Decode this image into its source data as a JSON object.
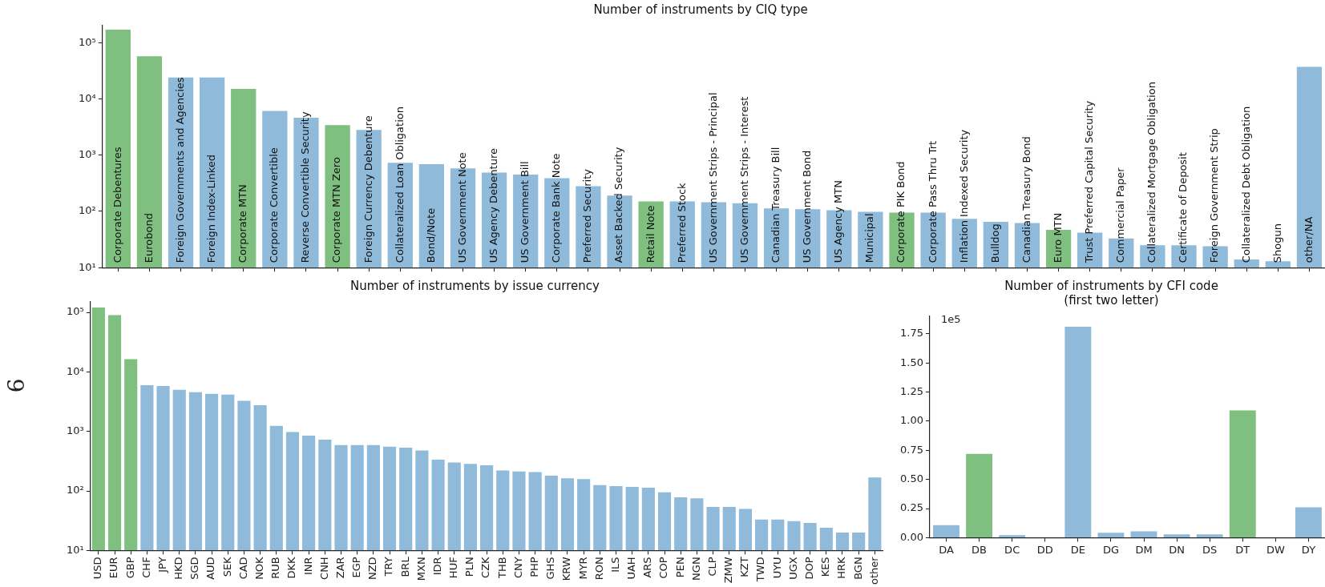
{
  "chart_data": [
    {
      "type": "bar",
      "title": "Number of instruments by CIQ type",
      "categories": [
        "Corporate Debentures",
        "Eurobond",
        "Foreign Governments and Agencies",
        "Foreign Index-Linked",
        "Corporate MTN",
        "Corporate Convertible",
        "Reverse Convertible Security",
        "Corporate MTN Zero",
        "Foreign Currency Debenture",
        "Collateralized Loan Obligation",
        "Bond/Note",
        "US Government Note",
        "US Agency Debenture",
        "US Government Bill",
        "Corporate Bank Note",
        "Preferred Security",
        "Asset Backed Security",
        "Retail Note",
        "Preferred Stock",
        "US Government Strips - Principal",
        "US Government Strips - Interest",
        "Canadian Treasury Bill",
        "US Government Bond",
        "US Agency MTN",
        "Municipal",
        "Corporate PIK Bond",
        "Corporate Pass Thru Trt",
        "Inflation Indexed Security",
        "Bulldog",
        "Canadian Treasury Bond",
        "Euro MTN",
        "Trust Preferred Capital Security",
        "Commercial Paper",
        "Collateralized Mortgage Obligation",
        "Certificate of Deposit",
        "Foreign Government Strip",
        "Collateralized Debt Obligation",
        "Shogun",
        "other/NA"
      ],
      "values": [
        170000,
        57000,
        24000,
        24000,
        15000,
        6100,
        4600,
        3400,
        2800,
        730,
        690,
        580,
        490,
        450,
        390,
        280,
        190,
        150,
        150,
        145,
        140,
        113,
        109,
        105,
        98,
        95,
        95,
        74,
        65,
        62,
        47,
        42,
        33,
        25,
        25,
        24,
        14,
        13,
        37000
      ],
      "colors": [
        "#7fbf7f",
        "#7fbf7f",
        "#8fbad9",
        "#8fbad9",
        "#7fbf7f",
        "#8fbad9",
        "#8fbad9",
        "#7fbf7f",
        "#8fbad9",
        "#8fbad9",
        "#8fbad9",
        "#8fbad9",
        "#8fbad9",
        "#8fbad9",
        "#8fbad9",
        "#8fbad9",
        "#8fbad9",
        "#7fbf7f",
        "#8fbad9",
        "#8fbad9",
        "#8fbad9",
        "#8fbad9",
        "#8fbad9",
        "#8fbad9",
        "#8fbad9",
        "#7fbf7f",
        "#8fbad9",
        "#8fbad9",
        "#8fbad9",
        "#8fbad9",
        "#7fbf7f",
        "#8fbad9",
        "#8fbad9",
        "#8fbad9",
        "#8fbad9",
        "#8fbad9",
        "#8fbad9",
        "#8fbad9",
        "#8fbad9"
      ],
      "log": true,
      "ylim": [
        10,
        200000
      ],
      "yticks": [
        {
          "value": 10,
          "label": "10¹"
        },
        {
          "value": 100,
          "label": "10²"
        },
        {
          "value": 1000,
          "label": "10³"
        },
        {
          "value": 10000,
          "label": "10⁴"
        },
        {
          "value": 100000,
          "label": "10⁵"
        }
      ],
      "tick_labels": "y",
      "grid": false,
      "legend": false
    },
    {
      "type": "bar",
      "title": "Number of instruments by issue currency",
      "categories": [
        "USD",
        "EUR",
        "GBP",
        "CHF",
        "JPY",
        "HKD",
        "SGD",
        "AUD",
        "SEK",
        "CAD",
        "NOK",
        "RUB",
        "DKK",
        "INR",
        "CNH",
        "ZAR",
        "EGP",
        "NZD",
        "TRY",
        "BRL",
        "MXN",
        "IDR",
        "HUF",
        "PLN",
        "CZK",
        "THB",
        "CNY",
        "PHP",
        "GHS",
        "KRW",
        "MYR",
        "RON",
        "ILS",
        "UAH",
        "ARS",
        "COP",
        "PEN",
        "NGN",
        "CLP",
        "ZMW",
        "KZT",
        "TWD",
        "UYU",
        "UGX",
        "DOP",
        "KES",
        "HRK",
        "BGN",
        "other"
      ],
      "values": [
        121000,
        90000,
        16400,
        6000,
        5800,
        5000,
        4550,
        4300,
        4150,
        3270,
        2760,
        1240,
        980,
        850,
        730,
        590,
        590,
        590,
        555,
        535,
        480,
        335,
        300,
        285,
        270,
        220,
        213,
        207,
        181,
        163,
        158,
        125,
        121,
        117,
        113,
        95,
        78,
        75,
        54,
        54,
        50,
        33,
        33,
        31,
        29,
        24,
        20,
        20,
        168
      ],
      "colors": [
        "#7fbf7f",
        "#7fbf7f",
        "#7fbf7f",
        "#8fbad9",
        "#8fbad9",
        "#8fbad9",
        "#8fbad9",
        "#8fbad9",
        "#8fbad9",
        "#8fbad9",
        "#8fbad9",
        "#8fbad9",
        "#8fbad9",
        "#8fbad9",
        "#8fbad9",
        "#8fbad9",
        "#8fbad9",
        "#8fbad9",
        "#8fbad9",
        "#8fbad9",
        "#8fbad9",
        "#8fbad9",
        "#8fbad9",
        "#8fbad9",
        "#8fbad9",
        "#8fbad9",
        "#8fbad9",
        "#8fbad9",
        "#8fbad9",
        "#8fbad9",
        "#8fbad9",
        "#8fbad9",
        "#8fbad9",
        "#8fbad9",
        "#8fbad9",
        "#8fbad9",
        "#8fbad9",
        "#8fbad9",
        "#8fbad9",
        "#8fbad9",
        "#8fbad9",
        "#8fbad9",
        "#8fbad9",
        "#8fbad9",
        "#8fbad9",
        "#8fbad9",
        "#8fbad9",
        "#8fbad9",
        "#8fbad9"
      ],
      "log": true,
      "ylim": [
        10,
        150000
      ],
      "yticks": [
        {
          "value": 10,
          "label": "10¹"
        },
        {
          "value": 100,
          "label": "10²"
        },
        {
          "value": 1000,
          "label": "10³"
        },
        {
          "value": 10000,
          "label": "10⁴"
        },
        {
          "value": 100000,
          "label": "10⁵"
        }
      ],
      "grid": false,
      "legend": false,
      "annotations": [
        "9"
      ]
    },
    {
      "type": "bar",
      "title": "Number of instruments by CFI code\n(first two letter)",
      "categories": [
        "DA",
        "DB",
        "DC",
        "DD",
        "DE",
        "DG",
        "DM",
        "DN",
        "DS",
        "DT",
        "DW",
        "DY"
      ],
      "values": [
        0.108,
        0.72,
        0.022,
        0,
        1.81,
        0.042,
        0.055,
        0.029,
        0.029,
        1.093,
        0,
        0.26
      ],
      "colors": [
        "#8fbad9",
        "#7fbf7f",
        "#8fbad9",
        "#8fbad9",
        "#8fbad9",
        "#8fbad9",
        "#8fbad9",
        "#8fbad9",
        "#8fbad9",
        "#7fbf7f",
        "#8fbad9",
        "#8fbad9"
      ],
      "ylim": [
        0,
        1.9
      ],
      "yticks": [
        {
          "value": 0,
          "label": "0.00"
        },
        {
          "value": 0.25,
          "label": "0.25"
        },
        {
          "value": 0.5,
          "label": "0.50"
        },
        {
          "value": 0.75,
          "label": "0.75"
        },
        {
          "value": 1,
          "label": "1.00"
        },
        {
          "value": 1.25,
          "label": "1.25"
        },
        {
          "value": 1.5,
          "label": "1.50"
        },
        {
          "value": 1.75,
          "label": "1.75"
        }
      ],
      "grid": false,
      "legend": false,
      "annotations": [
        "1e5"
      ]
    }
  ]
}
